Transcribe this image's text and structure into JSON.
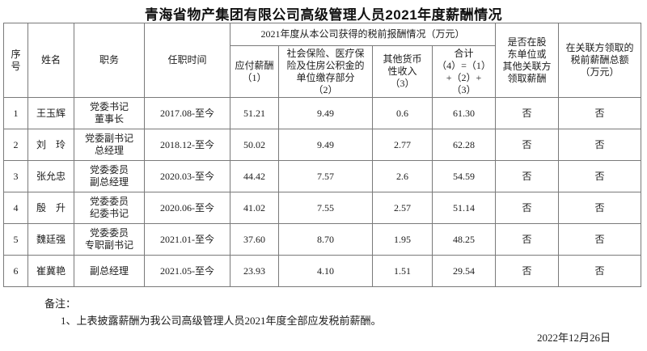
{
  "page": {
    "title": "青海省物产集团有限公司高级管理人员2021年度薪酬情况",
    "date": "2022年12月26日"
  },
  "notes": {
    "label": "备注：",
    "items": [
      "1、上表披露薪酬为我公司高级管理人员2021年度全部应发税前薪酬。"
    ]
  },
  "table": {
    "headers": {
      "seq": "序\n号",
      "name": "姓名",
      "position": "职务",
      "tenure": "任职时间",
      "compensation_group": "2021年度从本公司获得的税前报酬情况（万元）",
      "payable": "应付薪酬\n（1）",
      "insurance": "社会保险、医疗保\n险及住房公积金的\n单位缴存部分\n（2）",
      "other_income": "其他货币\n性收入\n（3）",
      "total": "合计\n（4）=（1）\n+（2）+\n（3）",
      "shareholder": "是否在股\n东单位或\n其他关联方\n领取薪酬",
      "related_party": "在关联方领取的\n税前薪酬总额\n（万元）"
    },
    "rows": [
      {
        "seq": "1",
        "name": "王玉辉",
        "position": "党委书记\n董事长",
        "tenure": "2017.08-至今",
        "payable": "51.21",
        "insurance": "9.49",
        "other": "0.6",
        "total": "61.30",
        "shareholder": "否",
        "related": "否"
      },
      {
        "seq": "2",
        "name": "刘　玲",
        "position": "党委副书记\n总经理",
        "tenure": "2018.12-至今",
        "payable": "50.02",
        "insurance": "9.49",
        "other": "2.77",
        "total": "62.28",
        "shareholder": "否",
        "related": "否"
      },
      {
        "seq": "3",
        "name": "张允忠",
        "position": "党委委员\n副总经理",
        "tenure": "2020.03-至今",
        "payable": "44.42",
        "insurance": "7.57",
        "other": "2.6",
        "total": "54.59",
        "shareholder": "否",
        "related": "否"
      },
      {
        "seq": "4",
        "name": "殷　升",
        "position": "党委委员\n纪委书记",
        "tenure": "2020.06-至今",
        "payable": "41.02",
        "insurance": "7.55",
        "other": "2.57",
        "total": "51.14",
        "shareholder": "否",
        "related": "否"
      },
      {
        "seq": "5",
        "name": "魏廷强",
        "position": "党委委员\n专职副书记",
        "tenure": "2021.01-至今",
        "payable": "37.60",
        "insurance": "8.70",
        "other": "1.95",
        "total": "48.25",
        "shareholder": "否",
        "related": "否"
      },
      {
        "seq": "6",
        "name": "崔冀艳",
        "position": "副总经理",
        "tenure": "2021.05-至今",
        "payable": "23.93",
        "insurance": "4.10",
        "other": "1.51",
        "total": "29.54",
        "shareholder": "否",
        "related": "否"
      }
    ]
  }
}
